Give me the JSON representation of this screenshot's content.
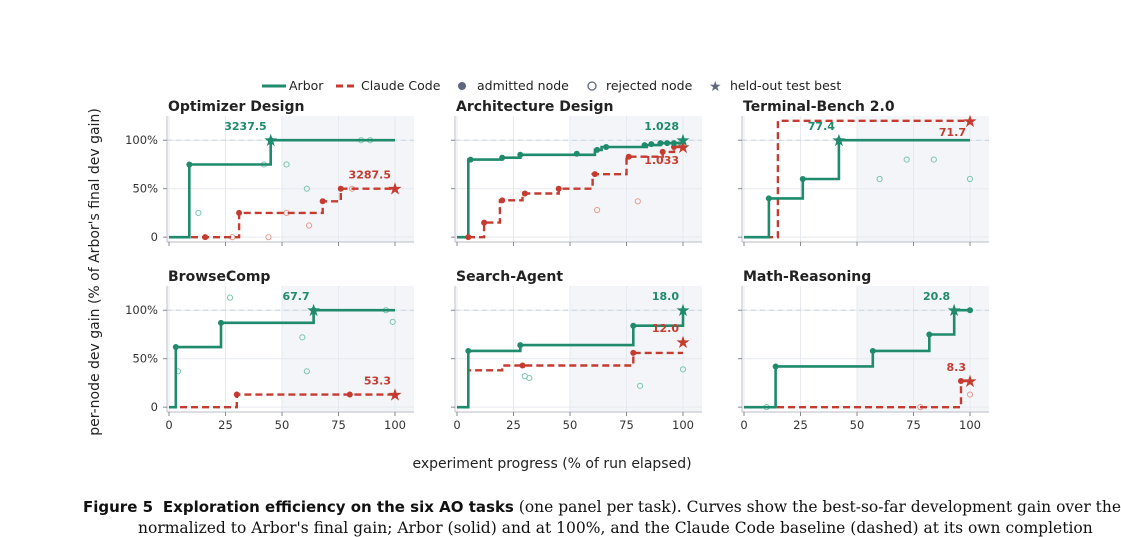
{
  "legend": {
    "arbor": "Arbor",
    "claude": "Claude Code",
    "admitted": "admitted node",
    "rejected": "rejected node",
    "heldout": "held-out test best"
  },
  "axes": {
    "ylabel": "per-node dev gain  (% of Arbor's final dev gain)",
    "xlabel": "experiment progress  (% of run elapsed)",
    "yticks": [
      "0",
      "50%",
      "100%"
    ],
    "xticks": [
      "0",
      "25",
      "50",
      "75",
      "100"
    ]
  },
  "colors": {
    "arbor": "#1f8a6c",
    "claude": "#c63b30",
    "shade": "#f3f5f8",
    "grid": "#e6e9ef"
  },
  "caption": {
    "label": "Figure 5",
    "bold": "Exploration efficiency on the six AO tasks",
    "rest": " (one panel per task). Curves show the best-so-far development gain over the",
    "line2": "normalized to Arbor's final gain; Arbor (solid) and at 100%, and the Claude Code baseline (dashed) at its own completion"
  },
  "chart_data": [
    {
      "type": "line",
      "title": "Optimizer Design",
      "shade_from": 50,
      "xlim": [
        0,
        100
      ],
      "ylim": [
        -5,
        125
      ],
      "arbor_steps": [
        [
          0,
          0
        ],
        [
          9,
          0
        ],
        [
          9,
          75
        ],
        [
          45,
          75
        ],
        [
          45,
          100
        ],
        [
          100,
          100
        ]
      ],
      "claude_steps": [
        [
          0,
          0
        ],
        [
          31,
          0
        ],
        [
          31,
          25
        ],
        [
          68,
          25
        ],
        [
          68,
          37
        ],
        [
          76,
          37
        ],
        [
          76,
          50
        ],
        [
          100,
          50
        ]
      ],
      "arbor_pts": [
        [
          9,
          75
        ],
        [
          45,
          100
        ]
      ],
      "claude_pts": [
        [
          16,
          0
        ],
        [
          31,
          25
        ],
        [
          68,
          37
        ],
        [
          76,
          50
        ]
      ],
      "arbor_rej": [
        [
          13,
          25
        ],
        [
          42,
          75
        ],
        [
          52,
          75
        ],
        [
          61,
          50
        ],
        [
          85,
          100
        ],
        [
          89,
          100
        ]
      ],
      "claude_rej": [
        [
          28,
          0
        ],
        [
          44,
          0
        ],
        [
          52,
          25
        ],
        [
          62,
          12
        ],
        [
          81,
          50
        ]
      ],
      "arbor_star": [
        45,
        100
      ],
      "arbor_star_label": "3237.5",
      "claude_star": [
        100,
        50
      ],
      "claude_star_label": "3287.5"
    },
    {
      "type": "line",
      "title": "Architecture Design",
      "shade_from": 50,
      "xlim": [
        0,
        100
      ],
      "ylim": [
        -5,
        125
      ],
      "arbor_steps": [
        [
          0,
          0
        ],
        [
          5,
          0
        ],
        [
          5,
          80
        ],
        [
          20,
          80
        ],
        [
          20,
          82
        ],
        [
          28,
          82
        ],
        [
          28,
          85
        ],
        [
          61,
          85
        ],
        [
          61,
          90
        ],
        [
          64,
          90
        ],
        [
          64,
          93
        ],
        [
          84,
          93
        ],
        [
          84,
          95
        ],
        [
          90,
          95
        ],
        [
          90,
          97
        ],
        [
          100,
          97
        ],
        [
          100,
          100
        ]
      ],
      "claude_steps": [
        [
          0,
          0
        ],
        [
          12,
          0
        ],
        [
          12,
          15
        ],
        [
          19,
          15
        ],
        [
          19,
          38
        ],
        [
          29,
          38
        ],
        [
          29,
          45
        ],
        [
          45,
          45
        ],
        [
          45,
          50
        ],
        [
          60,
          50
        ],
        [
          60,
          65
        ],
        [
          75,
          65
        ],
        [
          75,
          83
        ],
        [
          91,
          83
        ],
        [
          91,
          88
        ],
        [
          96,
          88
        ],
        [
          96,
          93
        ],
        [
          100,
          93
        ]
      ],
      "arbor_pts": [
        [
          6,
          80
        ],
        [
          20,
          82
        ],
        [
          28,
          85
        ],
        [
          53,
          86
        ],
        [
          62,
          90
        ],
        [
          66,
          93
        ],
        [
          83,
          95
        ],
        [
          86,
          96
        ],
        [
          90,
          97
        ],
        [
          93,
          97
        ],
        [
          96,
          97
        ]
      ],
      "claude_pts": [
        [
          5,
          0
        ],
        [
          12,
          15
        ],
        [
          20,
          38
        ],
        [
          30,
          45
        ],
        [
          45,
          50
        ],
        [
          61,
          65
        ],
        [
          76,
          83
        ],
        [
          91,
          88
        ],
        [
          96,
          93
        ]
      ],
      "arbor_rej": [
        [
          99,
          97
        ]
      ],
      "claude_rej": [
        [
          62,
          28
        ],
        [
          80,
          37
        ]
      ],
      "arbor_star": [
        100,
        100
      ],
      "arbor_star_label": "1.028",
      "claude_star": [
        100,
        93
      ],
      "claude_star_label": "1.033"
    },
    {
      "type": "line",
      "title": "Terminal-Bench 2.0",
      "shade_from": 50,
      "xlim": [
        0,
        100
      ],
      "ylim": [
        -5,
        125
      ],
      "arbor_steps": [
        [
          0,
          0
        ],
        [
          11,
          0
        ],
        [
          11,
          40
        ],
        [
          26,
          40
        ],
        [
          26,
          60
        ],
        [
          42,
          60
        ],
        [
          42,
          100
        ],
        [
          100,
          100
        ]
      ],
      "claude_steps": [
        [
          0,
          0
        ],
        [
          15,
          0
        ],
        [
          15,
          120
        ],
        [
          100,
          120
        ]
      ],
      "arbor_pts": [
        [
          11,
          40
        ],
        [
          26,
          60
        ],
        [
          42,
          100
        ]
      ],
      "claude_pts": [],
      "arbor_rej": [
        [
          60,
          60
        ],
        [
          72,
          80
        ],
        [
          84,
          80
        ],
        [
          100,
          60
        ]
      ],
      "claude_rej": [],
      "arbor_star": [
        42,
        100
      ],
      "arbor_star_label": "77.4",
      "claude_star": [
        100,
        120
      ],
      "claude_star_label": "71.7"
    },
    {
      "type": "line",
      "title": "BrowseComp",
      "shade_from": 50,
      "xlim": [
        0,
        100
      ],
      "ylim": [
        -5,
        125
      ],
      "arbor_steps": [
        [
          0,
          0
        ],
        [
          3,
          0
        ],
        [
          3,
          62
        ],
        [
          23,
          62
        ],
        [
          23,
          87
        ],
        [
          64,
          87
        ],
        [
          64,
          100
        ],
        [
          100,
          100
        ]
      ],
      "claude_steps": [
        [
          0,
          0
        ],
        [
          30,
          0
        ],
        [
          30,
          13
        ],
        [
          100,
          13
        ]
      ],
      "arbor_pts": [
        [
          3,
          62
        ],
        [
          23,
          87
        ],
        [
          64,
          100
        ]
      ],
      "claude_pts": [
        [
          30,
          13
        ],
        [
          80,
          13
        ]
      ],
      "arbor_rej": [
        [
          4,
          37
        ],
        [
          27,
          113
        ],
        [
          59,
          72
        ],
        [
          61,
          37
        ],
        [
          96,
          100
        ],
        [
          99,
          88
        ]
      ],
      "claude_rej": [],
      "arbor_star": [
        64,
        100
      ],
      "arbor_star_label": "67.7",
      "claude_star": [
        100,
        13
      ],
      "claude_star_label": "53.3"
    },
    {
      "type": "line",
      "title": "Search-Agent",
      "shade_from": 50,
      "xlim": [
        0,
        100
      ],
      "ylim": [
        -5,
        125
      ],
      "arbor_steps": [
        [
          0,
          0
        ],
        [
          5,
          0
        ],
        [
          5,
          58
        ],
        [
          28,
          58
        ],
        [
          28,
          64
        ],
        [
          78,
          64
        ],
        [
          78,
          84
        ],
        [
          100,
          84
        ],
        [
          100,
          100
        ]
      ],
      "claude_steps": [
        [
          0,
          0
        ],
        [
          5,
          0
        ],
        [
          5,
          38
        ],
        [
          20,
          38
        ],
        [
          20,
          43
        ],
        [
          78,
          43
        ],
        [
          78,
          56
        ],
        [
          100,
          56
        ]
      ],
      "arbor_pts": [
        [
          5,
          58
        ],
        [
          28,
          64
        ],
        [
          78,
          84
        ]
      ],
      "claude_pts": [
        [
          29,
          43
        ],
        [
          78,
          56
        ]
      ],
      "arbor_rej": [
        [
          30,
          32
        ],
        [
          32,
          30
        ],
        [
          81,
          22
        ],
        [
          100,
          39
        ]
      ],
      "claude_rej": [],
      "arbor_star": [
        100,
        100
      ],
      "arbor_star_label": "18.0",
      "claude_star": [
        100,
        67
      ],
      "claude_star_label": "12.0"
    },
    {
      "type": "line",
      "title": "Math-Reasoning",
      "shade_from": 50,
      "xlim": [
        0,
        100
      ],
      "ylim": [
        -5,
        125
      ],
      "arbor_steps": [
        [
          0,
          0
        ],
        [
          14,
          0
        ],
        [
          14,
          42
        ],
        [
          57,
          42
        ],
        [
          57,
          58
        ],
        [
          82,
          58
        ],
        [
          82,
          75
        ],
        [
          93,
          75
        ],
        [
          93,
          100
        ],
        [
          100,
          100
        ]
      ],
      "claude_steps": [
        [
          0,
          0
        ],
        [
          96,
          0
        ],
        [
          96,
          27
        ],
        [
          100,
          27
        ]
      ],
      "arbor_pts": [
        [
          14,
          42
        ],
        [
          57,
          58
        ],
        [
          82,
          75
        ],
        [
          100,
          100
        ]
      ],
      "claude_pts": [
        [
          96,
          27
        ]
      ],
      "arbor_rej": [
        [
          10,
          0
        ]
      ],
      "claude_rej": [
        [
          78,
          0
        ],
        [
          100,
          13
        ]
      ],
      "arbor_star": [
        93,
        100
      ],
      "arbor_star_label": "20.8",
      "claude_star": [
        100,
        27
      ],
      "claude_star_label": "8.3"
    }
  ]
}
